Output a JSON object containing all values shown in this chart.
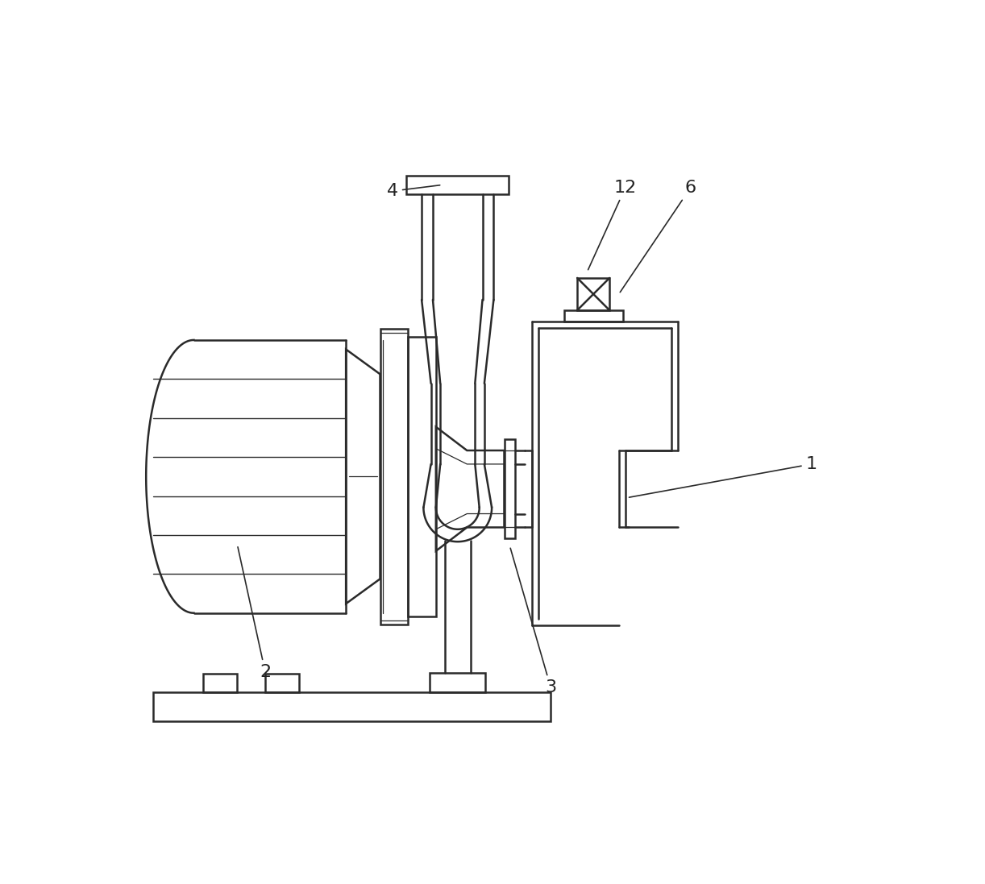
{
  "bg_color": "#ffffff",
  "line_color": "#2a2a2a",
  "line_width": 1.8,
  "fig_w": 12.22,
  "fig_h": 10.97,
  "dpi": 100
}
